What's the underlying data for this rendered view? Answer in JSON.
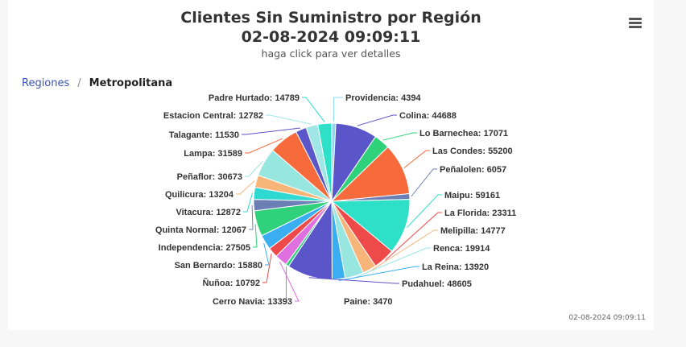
{
  "header": {
    "title_line1": "Clientes Sin Suministro por Región",
    "title_line2": "02-08-2024 09:09:11",
    "subtitle": "haga click para ver detalles"
  },
  "breadcrumb": {
    "root": "Regiones",
    "separator": "/",
    "current": "Metropolitana"
  },
  "timestamp": "02-08-2024 09:09:11",
  "chart_data": {
    "type": "pie",
    "title": "Clientes Sin Suministro por Región",
    "slices": [
      {
        "name": "Providencia",
        "value": 4394,
        "color": "#8bd8f0"
      },
      {
        "name": "Colina",
        "value": 44688,
        "color": "#5a55c8"
      },
      {
        "name": "Lo Barnechea",
        "value": 17071,
        "color": "#2fd17a"
      },
      {
        "name": "Las Condes",
        "value": 55200,
        "color": "#f66a3c"
      },
      {
        "name": "Peñalolen",
        "value": 6057,
        "color": "#6b7fb5"
      },
      {
        "name": "Maipu",
        "value": 59161,
        "color": "#2fe0c8"
      },
      {
        "name": "La Florida",
        "value": 23311,
        "color": "#ef4a4a"
      },
      {
        "name": "Melipilla",
        "value": 14777,
        "color": "#f7b57a"
      },
      {
        "name": "Renca",
        "value": 19914,
        "color": "#98e6e0"
      },
      {
        "name": "La Reina",
        "value": 13920,
        "color": "#3aaef0"
      },
      {
        "name": "Pudahuel",
        "value": 48605,
        "color": "#5a55c8"
      },
      {
        "name": "Paine",
        "value": 3470,
        "color": "#2fd17a"
      },
      {
        "name": "Cerro Navia",
        "value": 13393,
        "color": "#e070e0"
      },
      {
        "name": "Ñuñoa",
        "value": 10792,
        "color": "#ef4a4a"
      },
      {
        "name": "San Bernardo",
        "value": 15880,
        "color": "#3aaef0"
      },
      {
        "name": "Independencia",
        "value": 27505,
        "color": "#2fd17a"
      },
      {
        "name": "Quinta Normal",
        "value": 12067,
        "color": "#6b7fb5"
      },
      {
        "name": "Vitacura",
        "value": 12872,
        "color": "#2fd8d0"
      },
      {
        "name": "Quilicura",
        "value": 13204,
        "color": "#f7b57a"
      },
      {
        "name": "Peñaflor",
        "value": 30673,
        "color": "#98e6e0"
      },
      {
        "name": "Lampa",
        "value": 31589,
        "color": "#f66a3c"
      },
      {
        "name": "Talagante",
        "value": 11530,
        "color": "#5a55c8"
      },
      {
        "name": "Estacion Central",
        "value": 12782,
        "color": "#a0e6e6"
      },
      {
        "name": "Padre Hurtado",
        "value": 14789,
        "color": "#2fe0c8"
      }
    ]
  }
}
